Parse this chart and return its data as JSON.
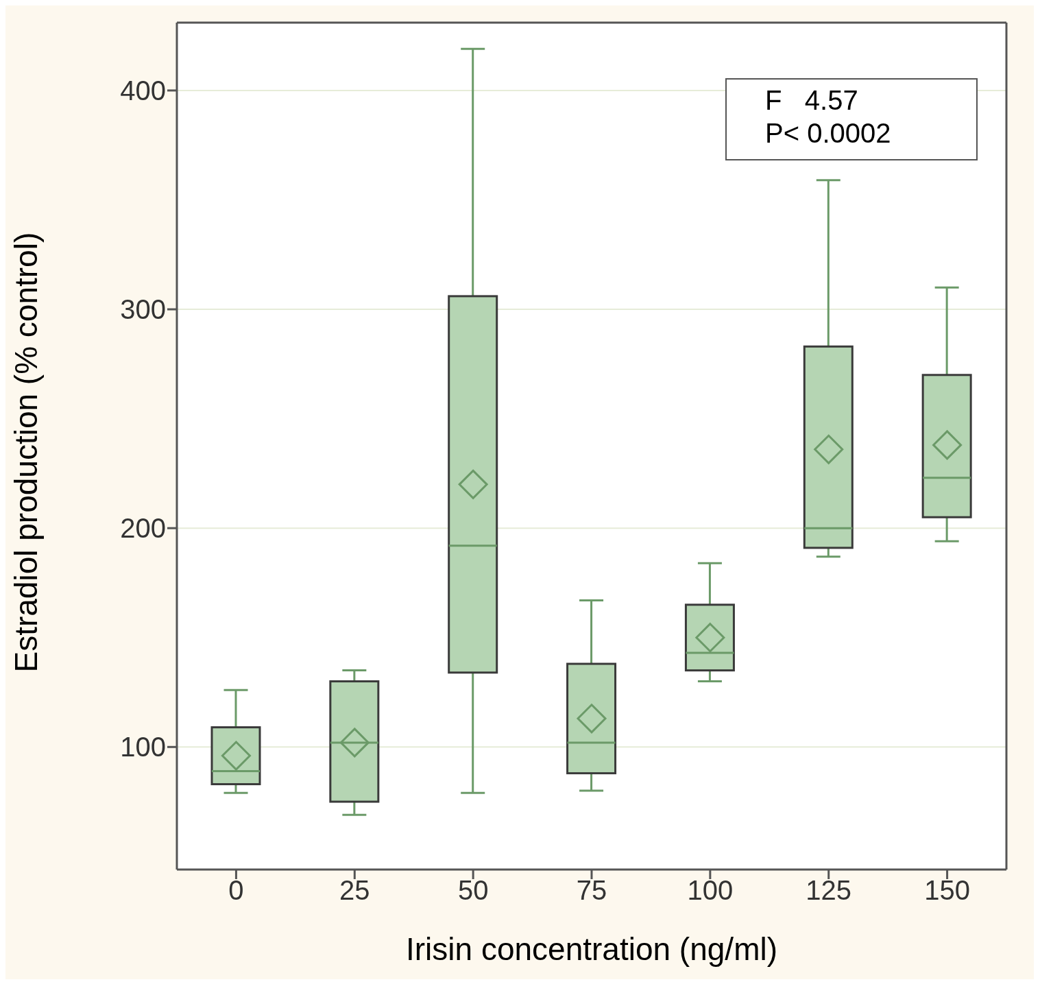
{
  "chart_data": {
    "type": "box",
    "xlabel": "Irisin concentration (ng/ml)",
    "ylabel": "Estradiol production (% control)",
    "categories": [
      "0",
      "25",
      "50",
      "75",
      "100",
      "125",
      "150"
    ],
    "boxes": [
      {
        "low": 79,
        "q1": 83,
        "median": 89,
        "q3": 109,
        "high": 126,
        "mean": 96
      },
      {
        "low": 69,
        "q1": 75,
        "median": 102,
        "q3": 130,
        "high": 135,
        "mean": 102
      },
      {
        "low": 79,
        "q1": 134,
        "median": 192,
        "q3": 306,
        "high": 419,
        "mean": 220
      },
      {
        "low": 80,
        "q1": 88,
        "median": 102,
        "q3": 138,
        "high": 167,
        "mean": 113
      },
      {
        "low": 130,
        "q1": 135,
        "median": 143,
        "q3": 165,
        "high": 184,
        "mean": 150
      },
      {
        "low": 187,
        "q1": 191,
        "median": 200,
        "q3": 283,
        "high": 359,
        "mean": 236
      },
      {
        "low": 194,
        "q1": 205,
        "median": 223,
        "q3": 270,
        "high": 310,
        "mean": 238
      }
    ],
    "color": "#b5d5b3",
    "ylim": [
      44,
      431
    ],
    "yticks": [
      100,
      200,
      300,
      400
    ],
    "grid": "y",
    "marker": "diamond",
    "annotations": [
      "F   4.57",
      "P< 0.0002"
    ]
  }
}
